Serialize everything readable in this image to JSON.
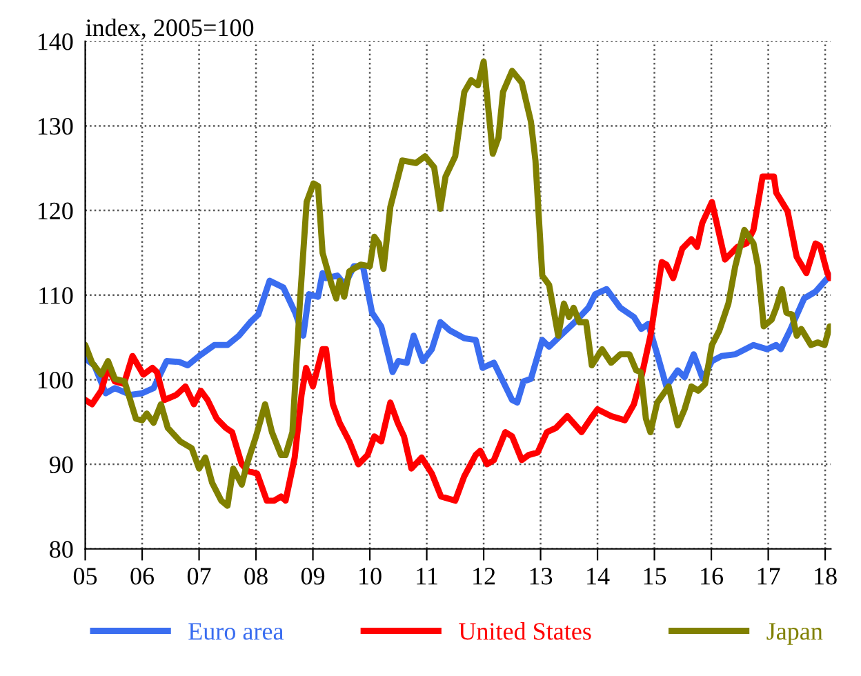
{
  "chart_data": {
    "type": "line",
    "ylabel": "index, 2005=100",
    "xlim": [
      2005,
      2018.1
    ],
    "ylim": [
      80,
      140
    ],
    "xticks": [
      {
        "value": 2005,
        "label": "05"
      },
      {
        "value": 2006,
        "label": "06"
      },
      {
        "value": 2007,
        "label": "07"
      },
      {
        "value": 2008,
        "label": "08"
      },
      {
        "value": 2009,
        "label": "09"
      },
      {
        "value": 2010,
        "label": "10"
      },
      {
        "value": 2011,
        "label": "11"
      },
      {
        "value": 2012,
        "label": "12"
      },
      {
        "value": 2013,
        "label": "13"
      },
      {
        "value": 2014,
        "label": "14"
      },
      {
        "value": 2015,
        "label": "15"
      },
      {
        "value": 2016,
        "label": "16"
      },
      {
        "value": 2017,
        "label": "17"
      },
      {
        "value": 2018,
        "label": "18"
      }
    ],
    "yticks": [
      80,
      90,
      100,
      110,
      120,
      130,
      140
    ],
    "grid": true,
    "legend": "bottom",
    "marker": "none",
    "line_style": "solid",
    "series": [
      {
        "name": "Euro area",
        "color": "#3a6df0",
        "x": [
          2005.0,
          2005.16,
          2005.36,
          2005.52,
          2005.8,
          2006.0,
          2006.2,
          2006.43,
          2006.65,
          2006.8,
          2007.0,
          2007.27,
          2007.5,
          2007.7,
          2007.9,
          2008.04,
          2008.24,
          2008.48,
          2008.69,
          2008.83,
          2008.93,
          2009.09,
          2009.17,
          2009.23,
          2009.43,
          2009.56,
          2009.72,
          2009.88,
          2010.04,
          2010.2,
          2010.4,
          2010.5,
          2010.65,
          2010.77,
          2010.93,
          2011.09,
          2011.24,
          2011.41,
          2011.66,
          2011.86,
          2011.98,
          2012.18,
          2012.34,
          2012.5,
          2012.59,
          2012.7,
          2012.83,
          2013.03,
          2013.15,
          2013.35,
          2013.6,
          2013.84,
          2013.96,
          2014.16,
          2014.4,
          2014.64,
          2014.77,
          2014.89,
          2015.05,
          2015.21,
          2015.41,
          2015.53,
          2015.69,
          2015.85,
          2016.01,
          2016.18,
          2016.42,
          2016.74,
          2016.98,
          2017.14,
          2017.22,
          2017.38,
          2017.63,
          2017.83,
          2018.08
        ],
        "values": [
          102.5,
          101.7,
          98.4,
          99.0,
          98.2,
          98.4,
          99.0,
          102.2,
          102.1,
          101.7,
          102.8,
          104.1,
          104.1,
          105.2,
          106.8,
          107.7,
          111.7,
          110.9,
          107.9,
          105.2,
          110.1,
          109.8,
          112.6,
          112.0,
          112.3,
          111.2,
          113.4,
          113.4,
          107.9,
          106.3,
          100.9,
          102.2,
          102.0,
          105.2,
          102.2,
          103.6,
          106.8,
          105.8,
          104.9,
          104.7,
          101.4,
          102.0,
          99.8,
          97.6,
          97.3,
          99.8,
          100.1,
          104.7,
          103.9,
          105.2,
          106.8,
          108.5,
          110.1,
          110.7,
          108.5,
          107.4,
          106.0,
          106.6,
          103.0,
          99.2,
          101.1,
          100.3,
          103.0,
          100.1,
          102.2,
          102.8,
          103.0,
          104.1,
          103.6,
          104.1,
          103.6,
          105.8,
          109.6,
          110.4,
          112.3
        ]
      },
      {
        "name": "United States",
        "color": "#ff0000",
        "x": [
          2005.0,
          2005.12,
          2005.28,
          2005.4,
          2005.52,
          2005.68,
          2005.83,
          2006.02,
          2006.18,
          2006.26,
          2006.39,
          2006.6,
          2006.76,
          2006.91,
          2007.03,
          2007.15,
          2007.31,
          2007.47,
          2007.58,
          2007.75,
          2007.86,
          2008.02,
          2008.19,
          2008.32,
          2008.44,
          2008.52,
          2008.68,
          2008.8,
          2008.88,
          2009.0,
          2009.17,
          2009.23,
          2009.35,
          2009.47,
          2009.64,
          2009.8,
          2009.96,
          2010.08,
          2010.2,
          2010.36,
          2010.49,
          2010.6,
          2010.73,
          2010.91,
          2011.09,
          2011.25,
          2011.5,
          2011.66,
          2011.86,
          2011.94,
          2012.06,
          2012.18,
          2012.38,
          2012.5,
          2012.67,
          2012.79,
          2012.95,
          2013.11,
          2013.27,
          2013.47,
          2013.72,
          2013.88,
          2014.0,
          2014.24,
          2014.48,
          2014.64,
          2014.77,
          2014.93,
          2015.13,
          2015.21,
          2015.33,
          2015.49,
          2015.65,
          2015.75,
          2015.84,
          2016.01,
          2016.24,
          2016.46,
          2016.62,
          2016.74,
          2016.9,
          2017.1,
          2017.14,
          2017.34,
          2017.5,
          2017.67,
          2017.83,
          2017.91,
          2018.03,
          2018.08
        ],
        "values": [
          97.6,
          97.1,
          98.7,
          101.4,
          99.8,
          99.5,
          102.8,
          100.6,
          101.4,
          100.9,
          97.6,
          98.2,
          99.2,
          97.1,
          98.7,
          97.6,
          95.4,
          94.3,
          93.8,
          90.0,
          89.2,
          88.9,
          85.7,
          85.7,
          86.2,
          85.7,
          90.8,
          98.2,
          101.4,
          99.2,
          103.6,
          103.6,
          97.1,
          94.9,
          92.7,
          90.0,
          91.1,
          93.3,
          92.7,
          97.3,
          94.9,
          93.3,
          89.5,
          90.8,
          88.9,
          86.2,
          85.7,
          88.6,
          91.1,
          91.6,
          90.0,
          90.5,
          93.8,
          93.3,
          90.5,
          91.1,
          91.4,
          93.8,
          94.3,
          95.7,
          93.8,
          95.4,
          96.5,
          95.7,
          95.2,
          97.1,
          100.3,
          105.2,
          113.9,
          113.6,
          112.0,
          115.5,
          116.6,
          115.7,
          118.5,
          121.0,
          114.2,
          115.7,
          116.1,
          117.7,
          124.0,
          124.0,
          122.1,
          119.9,
          114.5,
          112.6,
          116.1,
          115.8,
          112.8,
          112.0
        ]
      },
      {
        "name": "Japan",
        "color": "#808000",
        "x": [
          2005.0,
          2005.12,
          2005.28,
          2005.4,
          2005.52,
          2005.69,
          2005.89,
          2006.0,
          2006.08,
          2006.2,
          2006.33,
          2006.45,
          2006.67,
          2006.87,
          2007.0,
          2007.11,
          2007.23,
          2007.39,
          2007.5,
          2007.6,
          2007.75,
          2007.84,
          2008.0,
          2008.16,
          2008.28,
          2008.44,
          2008.52,
          2008.64,
          2008.77,
          2008.89,
          2009.01,
          2009.09,
          2009.17,
          2009.33,
          2009.41,
          2009.47,
          2009.55,
          2009.64,
          2009.84,
          2010.0,
          2010.08,
          2010.16,
          2010.24,
          2010.36,
          2010.57,
          2010.81,
          2010.97,
          2011.13,
          2011.24,
          2011.33,
          2011.5,
          2011.66,
          2011.78,
          2011.9,
          2012.0,
          2012.16,
          2012.26,
          2012.34,
          2012.5,
          2012.67,
          2012.83,
          2012.91,
          2013.03,
          2013.15,
          2013.31,
          2013.41,
          2013.5,
          2013.58,
          2013.68,
          2013.8,
          2013.9,
          2014.08,
          2014.24,
          2014.4,
          2014.56,
          2014.68,
          2014.76,
          2014.85,
          2014.93,
          2015.05,
          2015.25,
          2015.41,
          2015.53,
          2015.65,
          2015.77,
          2015.89,
          2016.01,
          2016.14,
          2016.3,
          2016.42,
          2016.58,
          2016.74,
          2016.82,
          2016.92,
          2017.06,
          2017.14,
          2017.24,
          2017.32,
          2017.42,
          2017.5,
          2017.58,
          2017.75,
          2017.87,
          2017.99,
          2018.08
        ],
        "values": [
          104.1,
          102.0,
          100.6,
          102.2,
          100.1,
          99.8,
          95.4,
          95.2,
          96.0,
          94.9,
          97.1,
          94.3,
          92.7,
          91.9,
          89.5,
          90.8,
          87.8,
          85.7,
          85.1,
          89.5,
          87.6,
          90.0,
          93.3,
          97.1,
          93.8,
          91.1,
          91.1,
          93.8,
          109.0,
          121.0,
          123.2,
          122.9,
          115.0,
          111.2,
          109.6,
          111.7,
          109.8,
          112.8,
          113.6,
          113.4,
          116.9,
          116.1,
          113.1,
          120.4,
          125.9,
          125.6,
          126.4,
          125.1,
          120.2,
          124.0,
          126.4,
          134.0,
          135.4,
          134.8,
          137.6,
          126.7,
          128.6,
          134.0,
          136.5,
          135.1,
          130.5,
          125.9,
          112.3,
          111.2,
          105.2,
          109.0,
          107.4,
          108.5,
          106.8,
          106.8,
          101.7,
          103.6,
          102.0,
          103.0,
          103.0,
          101.1,
          100.9,
          95.4,
          93.8,
          97.3,
          99.2,
          94.6,
          96.5,
          99.2,
          98.7,
          99.5,
          104.1,
          105.8,
          109.0,
          113.4,
          117.7,
          116.1,
          113.4,
          106.3,
          107.1,
          108.5,
          110.7,
          107.9,
          107.7,
          105.2,
          106.0,
          104.1,
          104.4,
          104.1,
          106.3
        ]
      }
    ]
  }
}
